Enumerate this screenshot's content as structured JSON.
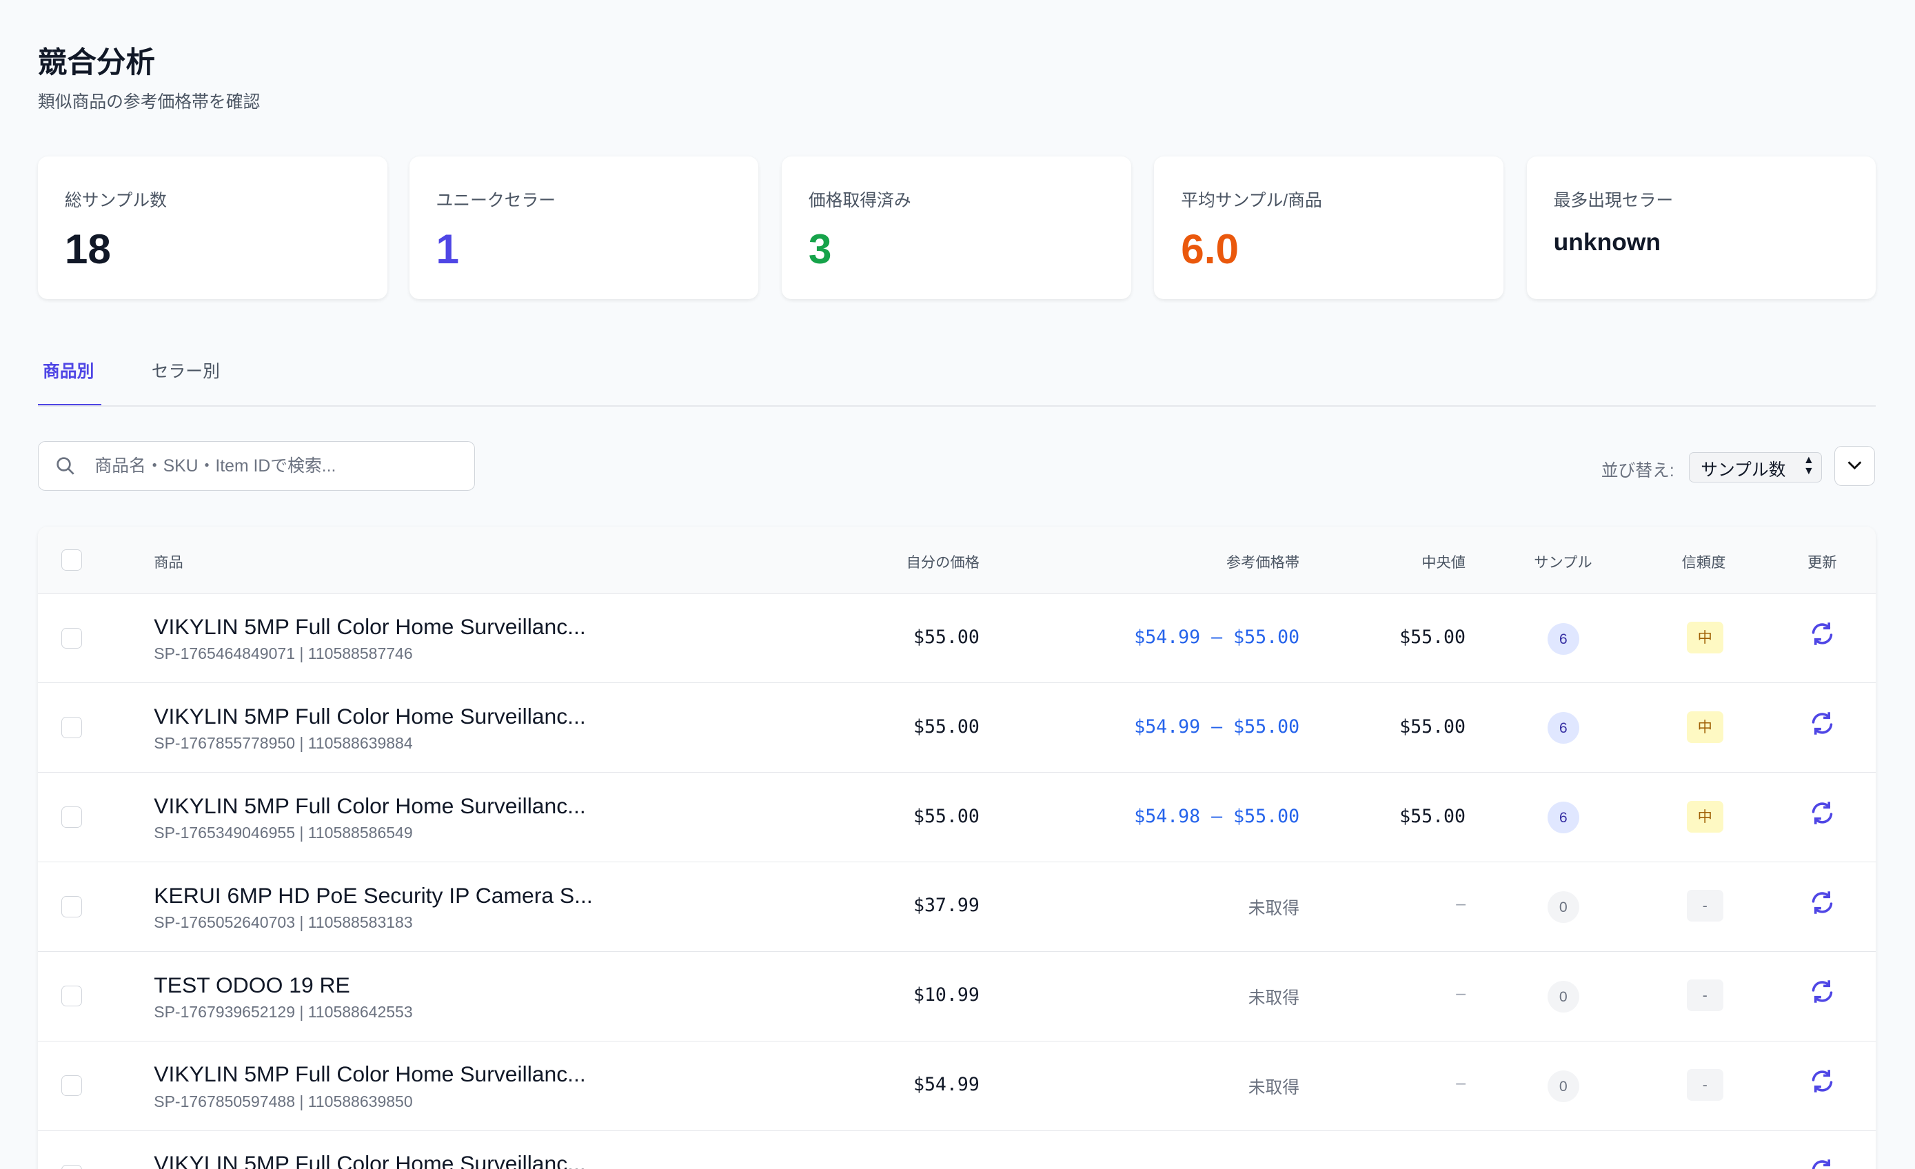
{
  "page": {
    "title": "競合分析",
    "subtitle": "類似商品の参考価格帯を確認"
  },
  "stats": [
    {
      "label": "総サンプル数",
      "value": "18",
      "color": "#111827"
    },
    {
      "label": "ユニークセラー",
      "value": "1",
      "color": "#4f46e5"
    },
    {
      "label": "価格取得済み",
      "value": "3",
      "color": "#16a34a"
    },
    {
      "label": "平均サンプル/商品",
      "value": "6.0",
      "color": "#ea580c"
    },
    {
      "label": "最多出現セラー",
      "value": "unknown",
      "color": "#111827"
    }
  ],
  "tabs": [
    {
      "label": "商品別",
      "active": true
    },
    {
      "label": "セラー別",
      "active": false
    }
  ],
  "search": {
    "placeholder": "商品名・SKU・Item IDで検索..."
  },
  "sort": {
    "label": "並び替え:",
    "selected": "サンプル数"
  },
  "table": {
    "headers": {
      "product": "商品",
      "my_price": "自分の価格",
      "range": "参考価格帯",
      "median": "中央値",
      "samples": "サンプル",
      "confidence": "信頼度",
      "update": "更新"
    },
    "rows": [
      {
        "name": "VIKYLIN 5MP Full Color Home Surveillanc...",
        "meta": "SP-1765464849071 | 110588587746",
        "price": "$55.00",
        "range": "$54.99 – $55.00",
        "median": "$55.00",
        "samples": "6",
        "confidence": "中"
      },
      {
        "name": "VIKYLIN 5MP Full Color Home Surveillanc...",
        "meta": "SP-1767855778950 | 110588639884",
        "price": "$55.00",
        "range": "$54.99 – $55.00",
        "median": "$55.00",
        "samples": "6",
        "confidence": "中"
      },
      {
        "name": "VIKYLIN 5MP Full Color Home Surveillanc...",
        "meta": "SP-1765349046955 | 110588586549",
        "price": "$55.00",
        "range": "$54.98 – $55.00",
        "median": "$55.00",
        "samples": "6",
        "confidence": "中"
      },
      {
        "name": "KERUI 6MP HD PoE Security IP Camera S...",
        "meta": "SP-1765052640703 | 110588583183",
        "price": "$37.99",
        "range": "未取得",
        "median": "–",
        "samples": "0",
        "confidence": "-"
      },
      {
        "name": "TEST ODOO 19 RE",
        "meta": "SP-1767939652129 | 110588642553",
        "price": "$10.99",
        "range": "未取得",
        "median": "–",
        "samples": "0",
        "confidence": "-"
      },
      {
        "name": "VIKYLIN 5MP Full Color Home Surveillanc...",
        "meta": "SP-1767850597488 | 110588639850",
        "price": "$54.99",
        "range": "未取得",
        "median": "–",
        "samples": "0",
        "confidence": "-"
      },
      {
        "name": "VIKYLIN 5MP Full Color Home Surveillanc...",
        "meta": "",
        "price": "",
        "range": "",
        "median": "",
        "samples": "",
        "confidence": ""
      }
    ]
  },
  "colors": {
    "accent": "#4f46e5",
    "range": "#2563eb"
  }
}
